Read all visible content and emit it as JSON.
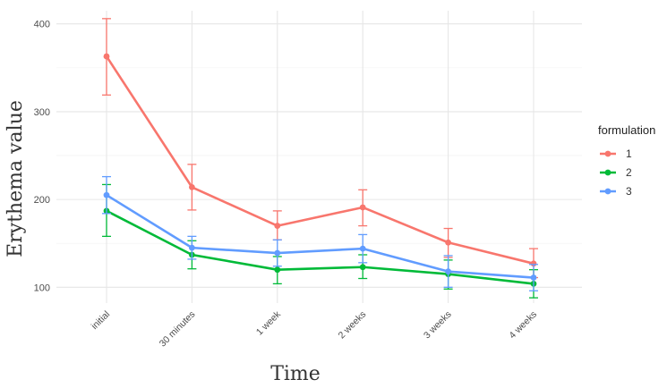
{
  "chart_data": {
    "type": "line",
    "xlabel": "Time",
    "ylabel": "Erythema value",
    "categories": [
      "initial",
      "30 minutes",
      "1 week",
      "2 weeks",
      "3 weeks",
      "4 weeks"
    ],
    "ylim": [
      82,
      415
    ],
    "yticks": [
      100,
      200,
      300,
      400
    ],
    "grid": true,
    "legend": {
      "title": "formulation",
      "position": "right"
    },
    "series": [
      {
        "name": "1",
        "color": "#F8766D",
        "values": [
          363,
          214,
          170,
          191,
          151,
          127
        ],
        "err_low": [
          319,
          188,
          154,
          170,
          134,
          111
        ],
        "err_high": [
          406,
          240,
          187,
          211,
          167,
          144
        ]
      },
      {
        "name": "2",
        "color": "#00BA38",
        "values": [
          187,
          137,
          120,
          123,
          115,
          104
        ],
        "err_low": [
          158,
          121,
          104,
          110,
          98,
          88
        ],
        "err_high": [
          217,
          153,
          135,
          137,
          131,
          120
        ]
      },
      {
        "name": "3",
        "color": "#619CFF",
        "values": [
          205,
          145,
          139,
          144,
          118,
          111
        ],
        "err_low": [
          184,
          132,
          124,
          128,
          100,
          96
        ],
        "err_high": [
          226,
          158,
          154,
          160,
          136,
          126
        ]
      }
    ]
  }
}
